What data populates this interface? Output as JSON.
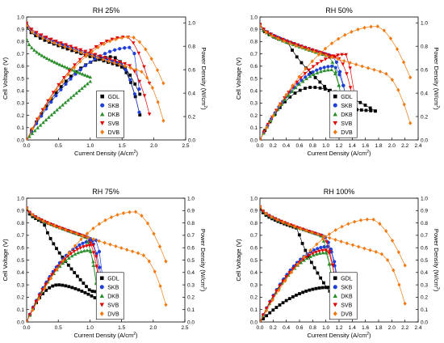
{
  "chart_data": [
    {
      "type": "scatter",
      "title": "RH 25%",
      "xlabel": "Current Density (A/cm",
      "xlabel_sup": "2",
      "xlabel_close": ")",
      "ylabel": "Cell Voltage (V)",
      "y2label": "Power Density (W/cm",
      "y2label_sup": "2",
      "y2label_close": ")",
      "xlim": [
        0,
        2.5
      ],
      "xticks": [
        0,
        0.5,
        1,
        1.5,
        2,
        2.5
      ],
      "xtick_labels": [
        "0.0",
        "0.5",
        "1.0",
        "1.5",
        "2.0",
        "2.5"
      ],
      "ylim": [
        0,
        1.0
      ],
      "yticks": [
        0,
        0.1,
        0.2,
        0.3,
        0.4,
        0.5,
        0.6,
        0.7,
        0.8,
        0.9,
        1.0
      ],
      "ytick_labels": [
        "0.0",
        "0.1",
        "0.2",
        "0.3",
        "0.4",
        "0.5",
        "0.6",
        "0.7",
        "0.8",
        "0.9",
        "1.0"
      ],
      "y2lim": [
        0,
        1.05
      ],
      "y2ticks": [
        0,
        0.2,
        0.4,
        0.6,
        0.8,
        1.0
      ],
      "y2tick_labels": [
        "0.0",
        "0.2",
        "0.4",
        "0.6",
        "0.8",
        "1.0"
      ],
      "legend": "bottom-center",
      "series": [
        {
          "name": "GDL",
          "color": "#000000",
          "marker": "square",
          "imax": 1.78,
          "voc": 0.92,
          "kind": "bell",
          "ppeak": 0.71,
          "ipeak": 1.35
        },
        {
          "name": "SKB",
          "color": "#1f3fd6",
          "marker": "circle",
          "imax": 1.77,
          "voc": 0.94,
          "kind": "bell",
          "ppeak": 0.79,
          "ipeak": 1.66
        },
        {
          "name": "DKB",
          "color": "#2a8f2a",
          "marker": "triangle-up",
          "imax": 1.0,
          "voc": 0.82,
          "kind": "mono",
          "ppeak": 0.5,
          "ipeak": 1.0
        },
        {
          "name": "SVB",
          "color": "#e00000",
          "marker": "triangle-down",
          "imax": 1.93,
          "voc": 0.95,
          "kind": "bell",
          "ppeak": 0.88,
          "ipeak": 1.58
        },
        {
          "name": "DVB",
          "color": "#f07a10",
          "marker": "diamond",
          "imax": 2.15,
          "voc": 0.93,
          "kind": "bell",
          "ppeak": 0.88,
          "ipeak": 1.65
        }
      ]
    },
    {
      "type": "scatter",
      "title": "RH 50%",
      "xlabel": "Current Density (A/cm",
      "xlabel_sup": "2",
      "xlabel_close": ")",
      "ylabel": "Cell Voltage (V)",
      "y2label": "Power Density (W/cm",
      "y2label_sup": "2",
      "y2label_close": ")",
      "xlim": [
        0,
        2.4
      ],
      "xticks": [
        0,
        0.2,
        0.4,
        0.6,
        0.8,
        1.0,
        1.2,
        1.4,
        1.6,
        1.8,
        2.0,
        2.2,
        2.4
      ],
      "xtick_labels": [
        "0.0",
        "0.2",
        "0.4",
        "0.6",
        "0.8",
        "1.0",
        "1.2",
        "1.4",
        "1.6",
        "1.8",
        "2.0",
        "2.2",
        "2.4"
      ],
      "ylim": [
        0,
        1.0
      ],
      "yticks": [
        0,
        0.1,
        0.2,
        0.3,
        0.4,
        0.5,
        0.6,
        0.7,
        0.8,
        0.9,
        1.0
      ],
      "ytick_labels": [
        "0.0",
        "0.1",
        "0.2",
        "0.3",
        "0.4",
        "0.5",
        "0.6",
        "0.7",
        "0.8",
        "0.9",
        "1.0"
      ],
      "y2lim": [
        0,
        1.05
      ],
      "y2ticks": [
        0,
        0.2,
        0.4,
        0.6,
        0.8,
        1.0
      ],
      "y2tick_labels": [
        "0.0",
        "0.2",
        "0.4",
        "0.6",
        "0.8",
        "1.0"
      ],
      "legend": "bottom-center",
      "series": [
        {
          "name": "GDL",
          "color": "#000000",
          "marker": "square",
          "imax": 1.75,
          "voc": 0.93,
          "kind": "knee",
          "ppeak": 0.45,
          "ipeak": 0.8
        },
        {
          "name": "SKB",
          "color": "#1f3fd6",
          "marker": "circle",
          "imax": 1.32,
          "voc": 0.94,
          "kind": "bell",
          "ppeak": 0.63,
          "ipeak": 1.12
        },
        {
          "name": "DKB",
          "color": "#2a8f2a",
          "marker": "triangle-up",
          "imax": 1.25,
          "voc": 0.93,
          "kind": "bell",
          "ppeak": 0.6,
          "ipeak": 1.1
        },
        {
          "name": "SVB",
          "color": "#e00000",
          "marker": "triangle-down",
          "imax": 1.43,
          "voc": 0.94,
          "kind": "bell",
          "ppeak": 0.73,
          "ipeak": 1.3
        },
        {
          "name": "DVB",
          "color": "#f07a10",
          "marker": "diamond",
          "imax": 2.28,
          "voc": 0.93,
          "kind": "bell",
          "ppeak": 0.97,
          "ipeak": 1.78
        }
      ]
    },
    {
      "type": "scatter",
      "title": "RH 75%",
      "xlabel": "Current Density (A/cm",
      "xlabel_sup": "2",
      "xlabel_close": ")",
      "ylabel": "Cell Voltage (V)",
      "y2label": "Power Density (W/cm",
      "y2label_sup": "2",
      "y2label_close": ")",
      "xlim": [
        0,
        2.5
      ],
      "xticks": [
        0,
        0.5,
        1,
        1.5,
        2,
        2.5
      ],
      "xtick_labels": [
        "0.0",
        "0.5",
        "1.0",
        "1.5",
        "2.0",
        "2.5"
      ],
      "ylim": [
        0,
        1.0
      ],
      "yticks": [
        0,
        0.1,
        0.2,
        0.3,
        0.4,
        0.5,
        0.6,
        0.7,
        0.8,
        0.9,
        1.0
      ],
      "ytick_labels": [
        "0.0",
        "0.1",
        "0.2",
        "0.3",
        "0.4",
        "0.5",
        "0.6",
        "0.7",
        "0.8",
        "0.9",
        "1.0"
      ],
      "y2lim": [
        0,
        1.0
      ],
      "y2ticks": [
        0,
        0.1,
        0.2,
        0.3,
        0.4,
        0.5,
        0.6,
        0.7,
        0.8,
        0.9,
        1.0
      ],
      "y2tick_labels": [
        "0.0",
        "0.1",
        "0.2",
        "0.3",
        "0.4",
        "0.5",
        "0.6",
        "0.7",
        "0.8",
        "0.9",
        "1.0"
      ],
      "legend": "bottom-center",
      "series": [
        {
          "name": "GDL",
          "color": "#000000",
          "marker": "square",
          "imax": 1.18,
          "voc": 0.91,
          "kind": "knee",
          "ppeak": 0.3,
          "ipeak": 0.5
        },
        {
          "name": "SKB",
          "color": "#1f3fd6",
          "marker": "circle",
          "imax": 1.2,
          "voc": 0.92,
          "kind": "bell",
          "ppeak": 0.66,
          "ipeak": 1.1
        },
        {
          "name": "DKB",
          "color": "#2a8f2a",
          "marker": "triangle-up",
          "imax": 1.1,
          "voc": 0.92,
          "kind": "bell",
          "ppeak": 0.58,
          "ipeak": 1.0
        },
        {
          "name": "SVB",
          "color": "#e00000",
          "marker": "triangle-down",
          "imax": 1.15,
          "voc": 0.92,
          "kind": "bell",
          "ppeak": 0.62,
          "ipeak": 1.05
        },
        {
          "name": "DVB",
          "color": "#f07a10",
          "marker": "diamond",
          "imax": 2.2,
          "voc": 0.92,
          "kind": "bell",
          "ppeak": 0.89,
          "ipeak": 1.72
        }
      ]
    },
    {
      "type": "scatter",
      "title": "RH 100%",
      "xlabel": "Current Density (A/cm",
      "xlabel_sup": "2",
      "xlabel_close": ")",
      "ylabel": "Cell Voltage (V)",
      "y2label": "Power Density (W/cm",
      "y2label_sup": "2",
      "y2label_close": ")",
      "xlim": [
        0,
        2.4
      ],
      "xticks": [
        0,
        0.2,
        0.4,
        0.6,
        0.8,
        1.0,
        1.2,
        1.4,
        1.6,
        1.8,
        2.0,
        2.2,
        2.4
      ],
      "xtick_labels": [
        "0.0",
        "0.2",
        "0.4",
        "0.6",
        "0.8",
        "1.0",
        "1.2",
        "1.4",
        "1.6",
        "1.8",
        "2.0",
        "2.2",
        "2.4"
      ],
      "ylim": [
        0,
        1.0
      ],
      "yticks": [
        0,
        0.1,
        0.2,
        0.3,
        0.4,
        0.5,
        0.6,
        0.7,
        0.8,
        0.9,
        1.0
      ],
      "ytick_labels": [
        "0.0",
        "0.1",
        "0.2",
        "0.3",
        "0.4",
        "0.5",
        "0.6",
        "0.7",
        "0.8",
        "0.9",
        "1.0"
      ],
      "y2lim": [
        0,
        1.0
      ],
      "y2ticks": [
        0,
        0.1,
        0.2,
        0.3,
        0.4,
        0.5,
        0.6,
        0.7,
        0.8,
        0.9,
        1.0
      ],
      "y2tick_labels": [
        "0.0",
        "0.1",
        "0.2",
        "0.3",
        "0.4",
        "0.5",
        "0.6",
        "0.7",
        "0.8",
        "0.9",
        "1.0"
      ],
      "legend": "bottom-center",
      "series": [
        {
          "name": "GDL",
          "color": "#000000",
          "marker": "square",
          "imax": 1.15,
          "voc": 0.92,
          "kind": "knee",
          "ppeak": 0.28,
          "ipeak": 1.05
        },
        {
          "name": "SKB",
          "color": "#1f3fd6",
          "marker": "circle",
          "imax": 1.18,
          "voc": 0.93,
          "kind": "bell",
          "ppeak": 0.61,
          "ipeak": 1.05
        },
        {
          "name": "DKB",
          "color": "#2a8f2a",
          "marker": "triangle-up",
          "imax": 1.1,
          "voc": 0.93,
          "kind": "bell",
          "ppeak": 0.56,
          "ipeak": 1.0
        },
        {
          "name": "SVB",
          "color": "#e00000",
          "marker": "triangle-down",
          "imax": 1.15,
          "voc": 0.93,
          "kind": "bell",
          "ppeak": 0.58,
          "ipeak": 1.02
        },
        {
          "name": "DVB",
          "color": "#f07a10",
          "marker": "diamond",
          "imax": 2.2,
          "voc": 0.93,
          "kind": "bell",
          "ppeak": 0.83,
          "ipeak": 1.7
        }
      ]
    }
  ]
}
